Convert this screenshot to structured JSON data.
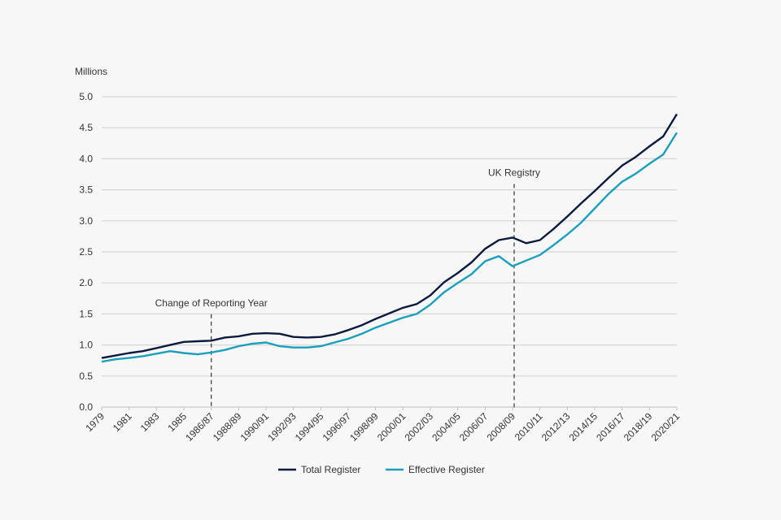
{
  "chart_data": {
    "type": "line",
    "title": "",
    "ylabel": "Millions",
    "xlabel": "",
    "ylim": [
      0,
      5.0
    ],
    "yticks": [
      "0.0",
      "0.5",
      "1.0",
      "1.5",
      "2.0",
      "2.5",
      "3.0",
      "3.5",
      "4.0",
      "4.5",
      "5.0"
    ],
    "ytick_values": [
      0,
      0.5,
      1.0,
      1.5,
      2.0,
      2.5,
      3.0,
      3.5,
      4.0,
      4.5,
      5.0
    ],
    "grid": true,
    "legend_position": "bottom",
    "categories": [
      "1979",
      "1980",
      "1981",
      "1982",
      "1983",
      "1984",
      "1985",
      "1986",
      "1986/87",
      "1987/88",
      "1988/89",
      "1989/90",
      "1990/91",
      "1991/92",
      "1992/93",
      "1993/94",
      "1994/95",
      "1995/96",
      "1996/97",
      "1997/98",
      "1998/99",
      "1999/00",
      "2000/01",
      "2001/02",
      "2002/03",
      "2003/04",
      "2004/05",
      "2005/06",
      "2006/07",
      "2007/08",
      "2008/09",
      "2009/10",
      "2010/11",
      "2011/12",
      "2012/13",
      "2013/14",
      "2014/15",
      "2015/16",
      "2016/17",
      "2017/18",
      "2018/19",
      "2019/20",
      "2020/21"
    ],
    "xtick_labels": [
      "1979",
      "1981",
      "1983",
      "1985",
      "1986/87",
      "1988/89",
      "1990/91",
      "1992/93",
      "1994/95",
      "1996/97",
      "1998/99",
      "2000/01",
      "2002/03",
      "2004/05",
      "2006/07",
      "2008/09",
      "2010/11",
      "2012/13",
      "2014/15",
      "2016/17",
      "2018/19",
      "2020/21"
    ],
    "series": [
      {
        "name": "Total Register",
        "color": "#0b1a3d",
        "values": [
          0.79,
          0.83,
          0.87,
          0.9,
          0.95,
          1.0,
          1.05,
          1.06,
          1.07,
          1.12,
          1.14,
          1.18,
          1.19,
          1.18,
          1.13,
          1.12,
          1.13,
          1.17,
          1.24,
          1.32,
          1.42,
          1.51,
          1.6,
          1.66,
          1.8,
          2.01,
          2.16,
          2.33,
          2.55,
          2.69,
          2.73,
          2.64,
          2.69,
          2.87,
          3.07,
          3.28,
          3.48,
          3.69,
          3.89,
          4.03,
          4.2,
          4.36,
          4.72
        ]
      },
      {
        "name": "Effective Register",
        "color": "#1a9fba",
        "values": [
          0.73,
          0.77,
          0.79,
          0.82,
          0.86,
          0.9,
          0.87,
          0.85,
          0.88,
          0.92,
          0.98,
          1.02,
          1.04,
          0.98,
          0.96,
          0.96,
          0.98,
          1.04,
          1.1,
          1.18,
          1.28,
          1.36,
          1.44,
          1.5,
          1.65,
          1.85,
          2.0,
          2.14,
          2.35,
          2.43,
          2.27,
          2.36,
          2.45,
          2.61,
          2.78,
          2.97,
          3.2,
          3.43,
          3.63,
          3.76,
          3.92,
          4.07,
          4.42
        ]
      }
    ],
    "annotations": [
      {
        "text": "Change of Reporting Year",
        "category": "1986/87",
        "label_value": 1.6
      },
      {
        "text": "UK Registry",
        "category": "2008/09",
        "label_value": 3.7
      }
    ]
  }
}
